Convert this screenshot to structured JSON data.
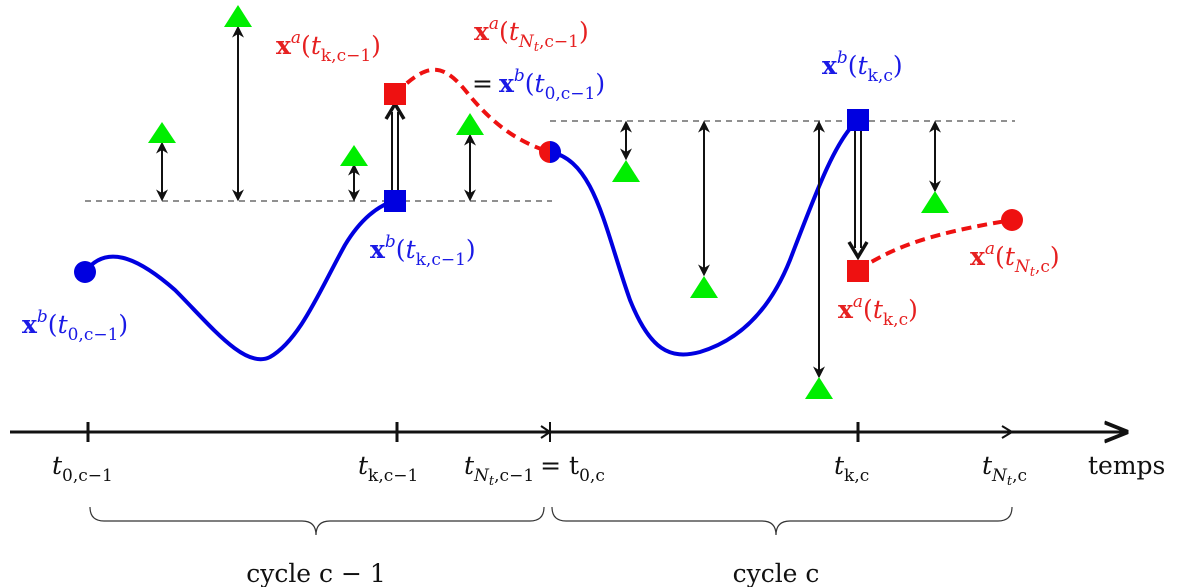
{
  "colors": {
    "background": "#ffffff",
    "background_traj": "#0000e0",
    "analysis_traj": "#ee1111",
    "observation": "#00ee00",
    "ink": "#111111"
  },
  "axis": {
    "ticks": {
      "t0_prev": [
        "t",
        "0,c−1"
      ],
      "tk_prev": [
        "t",
        "k,c−1"
      ],
      "tN_prev": [
        "t",
        "N",
        "t",
        ",c−1",
        "= t",
        "0,c"
      ],
      "tk_curr": [
        "t",
        "k,c"
      ],
      "tN_curr": [
        "t",
        "N",
        "t",
        ",c"
      ]
    },
    "label": "temps"
  },
  "braces": {
    "cycle_prev": "cycle c − 1",
    "cycle_curr": "cycle c"
  },
  "labels": {
    "xb_t0_prev": {
      "vec": "x",
      "sup": "b",
      "arg": "t",
      "sub": "0,c−1"
    },
    "xa_tk_prev": {
      "vec": "x",
      "sup": "a",
      "arg": "t",
      "sub": "k,c−1"
    },
    "xa_tN_prev": {
      "vec": "x",
      "sup": "a",
      "arg": "t",
      "sub": "N",
      "subsub": "t",
      "sub2": ",c−1"
    },
    "eq_xb_t0_curr": {
      "eq": "=",
      "vec": "x",
      "sup": "b",
      "arg": "t",
      "sub": "0,c−1"
    },
    "xb_tk_prev": {
      "vec": "x",
      "sup": "b",
      "arg": "t",
      "sub": "k,c−1"
    },
    "xb_tk_curr": {
      "vec": "x",
      "sup": "b",
      "arg": "t",
      "sub": "k,c"
    },
    "xa_tk_curr": {
      "vec": "x",
      "sup": "a",
      "arg": "t",
      "sub": "k,c"
    },
    "xa_tN_curr": {
      "vec": "x",
      "sup": "a",
      "arg": "t",
      "sub": "N",
      "subsub": "t",
      "sub2": ",c"
    }
  }
}
